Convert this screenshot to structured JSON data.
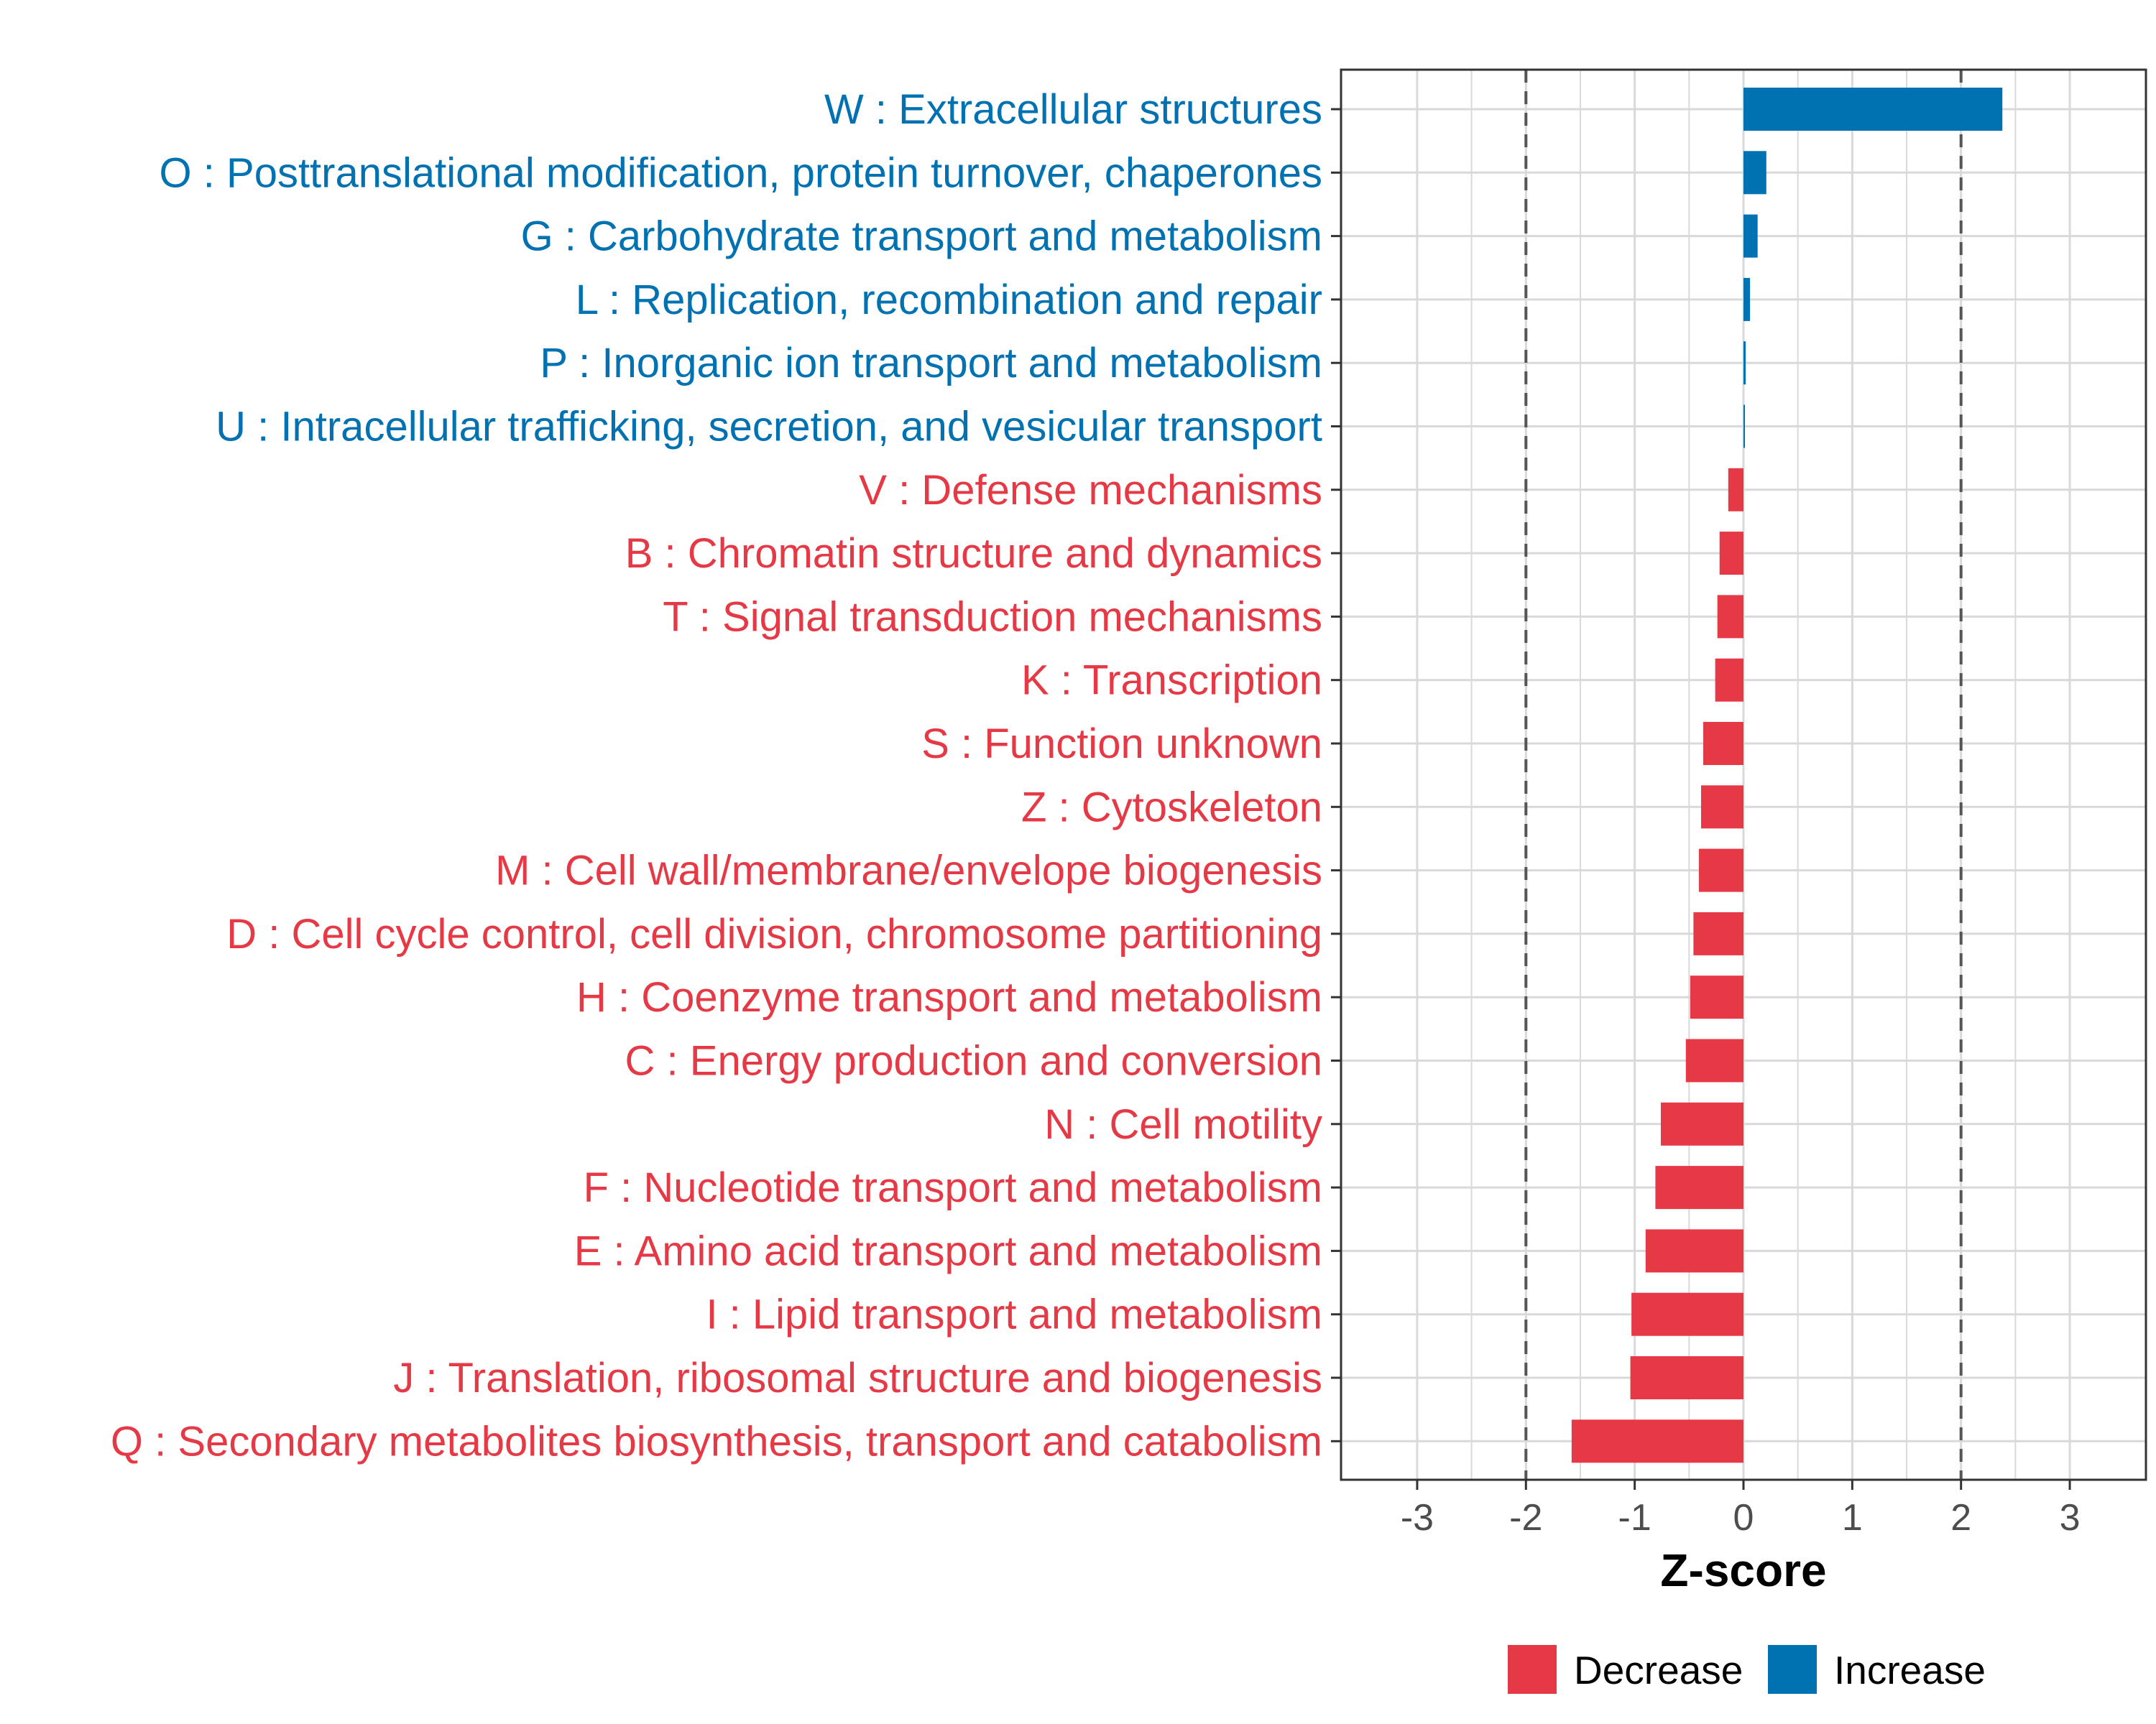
{
  "colors": {
    "increase": "#0072B2",
    "decrease": "#E63946",
    "grid": "#D9D9D9",
    "panel_border": "#333333",
    "reference_line": "#555555",
    "tick_text": "#4D4D4D"
  },
  "chart_data": {
    "type": "bar",
    "orientation": "horizontal",
    "title": "",
    "xlabel": "Z-score",
    "ylabel": "",
    "xlim": [
      -3.7,
      3.7
    ],
    "x_ticks": [
      -3,
      -2,
      -1,
      0,
      1,
      2,
      3
    ],
    "x_tick_labels": [
      "-3",
      "-2",
      "-1",
      "0",
      "1",
      "2",
      "3"
    ],
    "reference_lines": [
      -2,
      2
    ],
    "grid": true,
    "legend_position": "bottom",
    "legend": [
      {
        "name": "Decrease",
        "color_key": "decrease"
      },
      {
        "name": "Increase",
        "color_key": "increase"
      }
    ],
    "categories": [
      "W : Extracellular structures",
      "O : Posttranslational modification, protein turnover, chaperones",
      "G : Carbohydrate transport and metabolism",
      "L : Replication, recombination and repair",
      "P : Inorganic ion transport and metabolism",
      "U : Intracellular trafficking, secretion, and vesicular transport",
      "V : Defense mechanisms",
      "B : Chromatin structure and dynamics",
      "T : Signal transduction mechanisms",
      "K : Transcription",
      "S : Function unknown",
      "Z : Cytoskeleton",
      "M : Cell wall/membrane/envelope biogenesis",
      "D : Cell cycle control, cell division, chromosome partitioning",
      "H : Coenzyme transport and metabolism",
      "C : Energy production and conversion",
      "N : Cell motility",
      "F : Nucleotide transport and metabolism",
      "E : Amino acid transport and metabolism",
      "I : Lipid transport and metabolism",
      "J : Translation, ribosomal structure and biogenesis",
      "Q : Secondary metabolites biosynthesis, transport and catabolism"
    ],
    "values": [
      2.38,
      0.21,
      0.13,
      0.06,
      0.02,
      0.01,
      -0.14,
      -0.22,
      -0.24,
      -0.26,
      -0.37,
      -0.39,
      -0.41,
      -0.46,
      -0.49,
      -0.53,
      -0.76,
      -0.81,
      -0.9,
      -1.03,
      -1.04,
      -1.58
    ],
    "groups": [
      "Increase",
      "Increase",
      "Increase",
      "Increase",
      "Increase",
      "Increase",
      "Decrease",
      "Decrease",
      "Decrease",
      "Decrease",
      "Decrease",
      "Decrease",
      "Decrease",
      "Decrease",
      "Decrease",
      "Decrease",
      "Decrease",
      "Decrease",
      "Decrease",
      "Decrease",
      "Decrease",
      "Decrease"
    ]
  }
}
